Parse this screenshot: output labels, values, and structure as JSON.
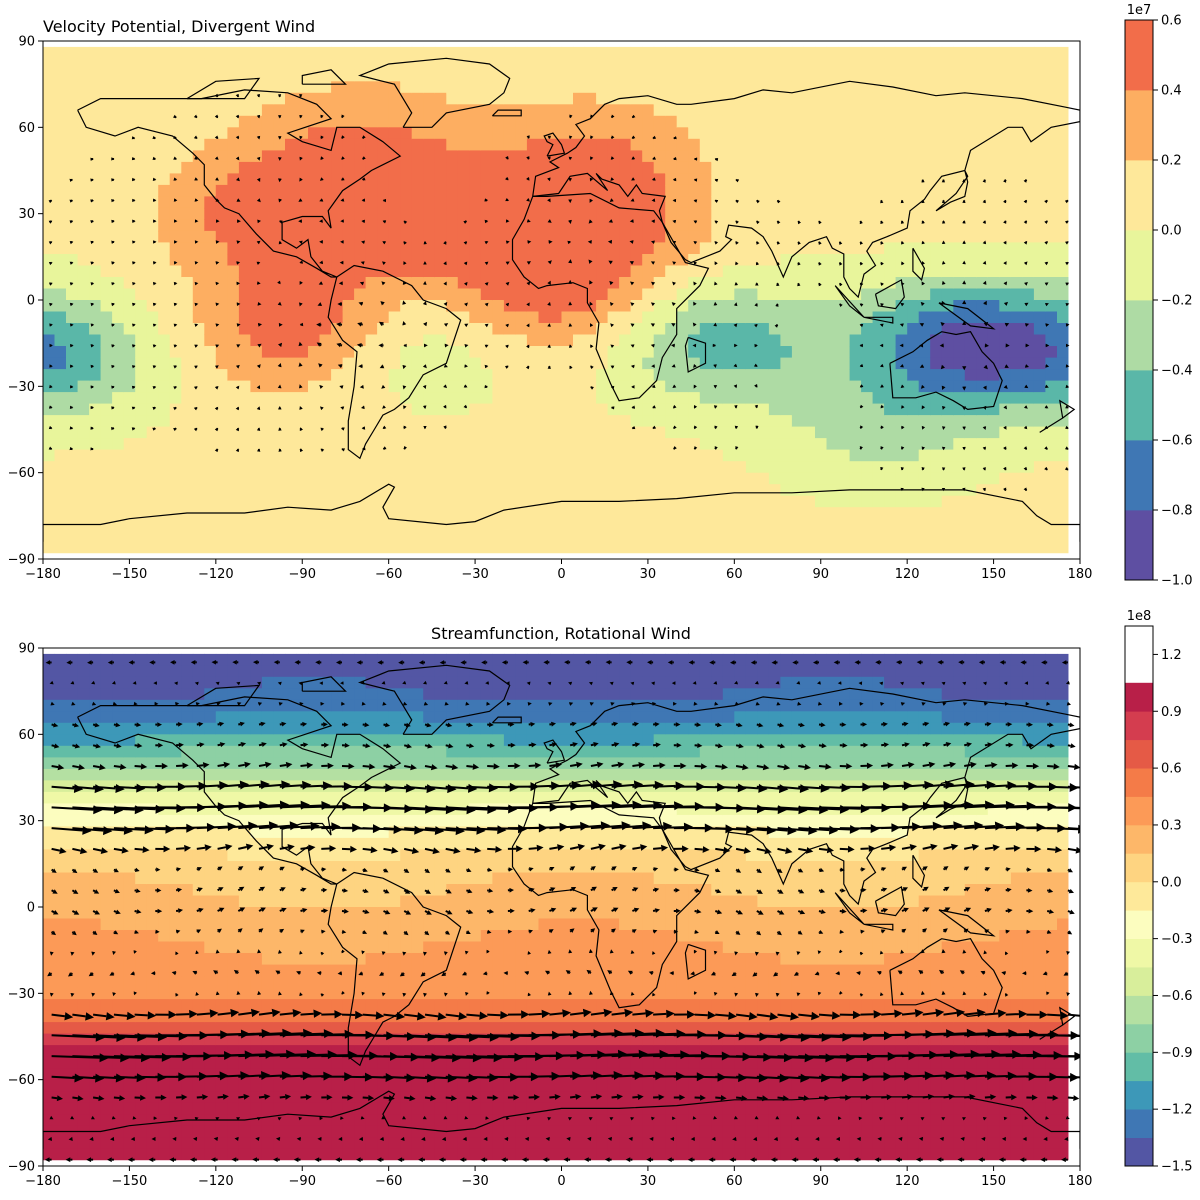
{
  "chart_data": [
    {
      "type": "contour_with_vectors",
      "title": "Velocity Potential, Divergent Wind",
      "title_align": "left",
      "xlabel": "",
      "ylabel": "",
      "xlim": [
        -180,
        180
      ],
      "ylim": [
        -90,
        90
      ],
      "x_ticks": [
        -180,
        -150,
        -120,
        -90,
        -60,
        -30,
        0,
        30,
        60,
        90,
        120,
        150,
        180
      ],
      "y_ticks": [
        90,
        60,
        30,
        0,
        -30,
        -60,
        -90
      ],
      "x_tick_labels": [
        "−180",
        "−150",
        "−120",
        "−90",
        "−60",
        "−30",
        "0",
        "30",
        "60",
        "90",
        "120",
        "150",
        "180"
      ],
      "y_tick_labels": [
        "90",
        "60",
        "30",
        "0",
        "−30",
        "−60",
        "−90"
      ],
      "colorbar": {
        "exponent_label": "1e7",
        "levels": [
          -1.0,
          -0.8,
          -0.6,
          -0.4,
          -0.2,
          0.0,
          0.2,
          0.4,
          0.6
        ],
        "tick_labels": [
          "−1.0",
          "−0.8",
          "−0.6",
          "−0.4",
          "−0.2",
          "0.0",
          "0.2",
          "0.4",
          "0.6"
        ],
        "colors": [
          "#5e4fa2",
          "#3f77b4",
          "#5ab7a8",
          "#aedba4",
          "#e8f59b",
          "#fee89a",
          "#fdae61",
          "#f26d4a"
        ]
      },
      "field_centers": [
        {
          "lon": -90,
          "lat": -10,
          "value": 0.5
        },
        {
          "lon": -100,
          "lat": 30,
          "value": 0.45
        },
        {
          "lon": -50,
          "lat": 28,
          "value": 0.45
        },
        {
          "lon": 8,
          "lat": 25,
          "value": 0.48
        },
        {
          "lon": -5,
          "lat": 0,
          "value": 0.4
        },
        {
          "lon": 10,
          "lat": 50,
          "value": 0.3
        },
        {
          "lon": -70,
          "lat": 55,
          "value": 0.3
        },
        {
          "lon": -50,
          "lat": -15,
          "value": -0.3
        },
        {
          "lon": 140,
          "lat": -15,
          "value": -0.85
        },
        {
          "lon": 55,
          "lat": -15,
          "value": -0.55
        },
        {
          "lon": 110,
          "lat": -45,
          "value": -0.3
        },
        {
          "lon": -175,
          "lat": -20,
          "value": -0.5
        }
      ],
      "vector_sources": [
        {
          "lon": -55,
          "lat": -15,
          "strength": 1.0
        },
        {
          "lon": 140,
          "lat": -15,
          "strength": 1.1
        },
        {
          "lon": 50,
          "lat": -15,
          "strength": 0.6
        }
      ],
      "vector_sinks": [
        {
          "lon": -90,
          "lat": -10,
          "strength": 1.0
        },
        {
          "lon": 5,
          "lat": 20,
          "strength": 0.9
        },
        {
          "lon": -100,
          "lat": 30,
          "strength": 0.6
        }
      ]
    },
    {
      "type": "contour_with_vectors",
      "title": "Streamfunction, Rotational Wind",
      "title_align": "center",
      "xlabel": "",
      "ylabel": "",
      "xlim": [
        -180,
        180
      ],
      "ylim": [
        -90,
        90
      ],
      "x_ticks": [
        -180,
        -150,
        -120,
        -90,
        -60,
        -30,
        0,
        30,
        60,
        90,
        120,
        150,
        180
      ],
      "y_ticks": [
        90,
        60,
        30,
        0,
        -30,
        -60,
        -90
      ],
      "x_tick_labels": [
        "−180",
        "−150",
        "−120",
        "−90",
        "−60",
        "−30",
        "0",
        "30",
        "60",
        "90",
        "120",
        "150",
        "180"
      ],
      "y_tick_labels": [
        "90",
        "60",
        "30",
        "0",
        "−30",
        "−60",
        "−90"
      ],
      "colorbar": {
        "exponent_label": "1e8",
        "levels": [
          -1.5,
          -1.35,
          -1.2,
          -1.05,
          -0.9,
          -0.75,
          -0.6,
          -0.45,
          -0.3,
          -0.15,
          0.0,
          0.15,
          0.3,
          0.45,
          0.6,
          0.75,
          0.9,
          1.05,
          1.2,
          1.35
        ],
        "tick_values": [
          -1.5,
          -1.2,
          -0.9,
          -0.6,
          -0.3,
          0.0,
          0.3,
          0.6,
          0.9,
          1.2
        ],
        "tick_labels": [
          "−1.5",
          "−1.2",
          "−0.9",
          "−0.6",
          "−0.3",
          "0.0",
          "0.3",
          "0.6",
          "0.9",
          "1.2"
        ],
        "colors": [
          "#5356a4",
          "#3f77b4",
          "#3d98b8",
          "#62bda6",
          "#8dd0a4",
          "#b4e0a2",
          "#d8ee9b",
          "#eff8a6",
          "#fcfdbf",
          "#fee99a",
          "#fed481",
          "#fdb769",
          "#fc9a57",
          "#f47b48",
          "#e55a46",
          "#d43d4f",
          "#b81f48"
        ]
      },
      "zonal_profile": [
        {
          "lat": 90,
          "value": -1.45
        },
        {
          "lat": 75,
          "value": -1.38
        },
        {
          "lat": 60,
          "value": -1.1
        },
        {
          "lat": 45,
          "value": -0.6
        },
        {
          "lat": 30,
          "value": -0.2
        },
        {
          "lat": 15,
          "value": 0.08
        },
        {
          "lat": 0,
          "value": 0.2
        },
        {
          "lat": -15,
          "value": 0.32
        },
        {
          "lat": -30,
          "value": 0.42
        },
        {
          "lat": -40,
          "value": 0.62
        },
        {
          "lat": -50,
          "value": 0.92
        },
        {
          "lat": -60,
          "value": 1.2
        },
        {
          "lat": -75,
          "value": 1.34
        },
        {
          "lat": -90,
          "value": 1.36
        }
      ],
      "jets": [
        {
          "lat": 33,
          "peak_wind": 1.0
        },
        {
          "lat": -48,
          "peak_wind": 1.0
        }
      ]
    }
  ]
}
